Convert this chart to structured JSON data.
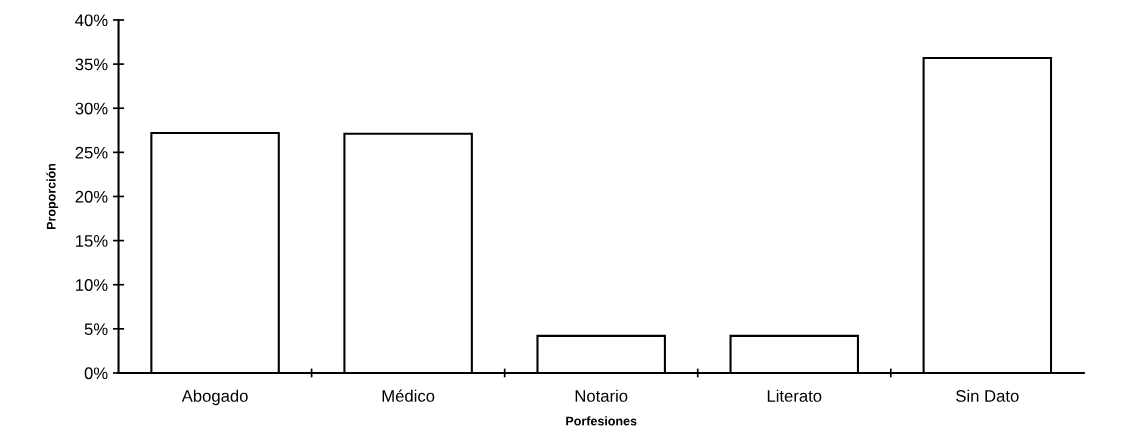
{
  "chart_data": {
    "type": "bar",
    "xlabel": "Porfesiones",
    "ylabel": "Proporción",
    "categories": [
      "Abogado",
      "Médico",
      "Notario",
      "Literato",
      "Sin Dato"
    ],
    "values": [
      27.2,
      27.1,
      4.2,
      4.2,
      35.7
    ],
    "color": "#ffffff",
    "ylim": [
      0,
      40
    ],
    "yticks": [
      {
        "value": 0,
        "label": "0%"
      },
      {
        "value": 5,
        "label": "5%"
      },
      {
        "value": 10,
        "label": "10%"
      },
      {
        "value": 15,
        "label": "15%"
      },
      {
        "value": 20,
        "label": "20%"
      },
      {
        "value": 25,
        "label": "25%"
      },
      {
        "value": 30,
        "label": "30%"
      },
      {
        "value": 35,
        "label": "35%"
      },
      {
        "value": 40,
        "label": "40%"
      }
    ],
    "grid": false,
    "legend": false
  }
}
